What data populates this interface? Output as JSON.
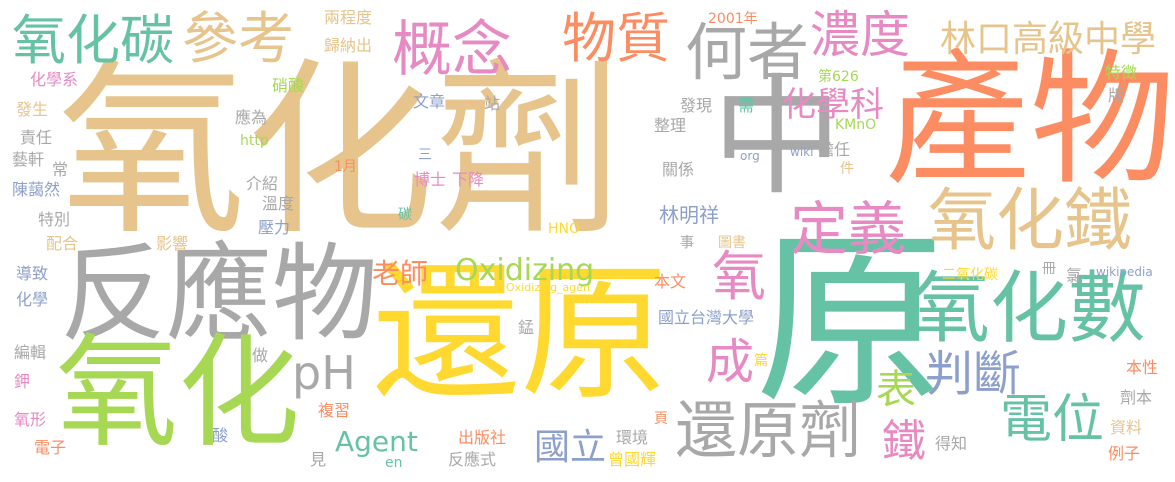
{
  "colors": {
    "tan": "#e6c48c",
    "gray": "#a8a8a8",
    "green": "#66c2a5",
    "lime": "#a6d854",
    "yellow": "#ffd92f",
    "orange": "#fc8d62",
    "blue": "#8da0cb",
    "pink": "#e78ac3"
  },
  "words": {
    "oxidant": "氧化劑",
    "reduction": "還原",
    "yuan": "原",
    "product": "產物",
    "reactant": "反應物",
    "oxidation": "氧化",
    "zhong": "中",
    "oxidation_number": "氧化數",
    "iron_oxide": "氧化鐵",
    "reductant": "還原劑",
    "carbon_oxide": "氧化碳",
    "reference": "參考",
    "concept": "概念",
    "matter": "物質",
    "which": "何者",
    "concentration": "濃度",
    "linkou": "林口高級中學",
    "definition": "定義",
    "chem_dept": "化學科",
    "judge": "判斷",
    "potential": "電位",
    "oxidizing": "Oxidizing",
    "agent": "Agent",
    "ph": "pH",
    "teacher": "老師",
    "oxygen": "氧",
    "become": "成",
    "table": "表",
    "iron": "鐵",
    "national": "國立",
    "lin": "林明祥",
    "nitric": "硝酸",
    "two_degrees": "兩程度",
    "summarize": "歸納出",
    "year": "2001年",
    "no626": "第626",
    "feature": "特徵",
    "chem_sys": "化學系",
    "occur": "發生",
    "responsible": "責任",
    "yixuan": "藝軒",
    "chang": "常",
    "chen": "陳藹然",
    "special": "特別",
    "match": "配合",
    "cause": "導致",
    "chemistry": "化學",
    "edit": "編輯",
    "potassium": "鉀",
    "oxy_form": "氧形",
    "electron": "電子",
    "should_be": "應為",
    "http": "http",
    "introduce": "介紹",
    "temperature": "溫度",
    "influence": "影響",
    "pressure": "壓力",
    "do": "做",
    "review": "複習",
    "acid": "酸",
    "see": "見",
    "en": "en",
    "publisher": "出版社",
    "reaction_eq": "反應式",
    "one_month": "1月",
    "three": "三",
    "doctor": "博士",
    "decrease": "下降",
    "carbon": "碳",
    "hno": "HNO",
    "article": "文章",
    "station": "站",
    "discover": "發現",
    "need": "需",
    "organize": "整理",
    "kmno": "KMnO",
    "relation": "關係",
    "org": "org",
    "wiki": "wiki",
    "serve": "擔任",
    "piece": "件",
    "version": "版",
    "thing": "事",
    "library": "圖書",
    "volume": "冊",
    "chlorine": "氯",
    "co2": "二氧化碳",
    "wikipedia": "wikipedia",
    "this_article": "本文",
    "oxidizing_agen": "Oxidizing_agen",
    "ntu": "國立台灣大學",
    "manganese": "錳",
    "chapter": "篇",
    "nature": "本性",
    "agent_ben": "劑本",
    "page": "頁",
    "environment": "環境",
    "zeng": "曾國輝",
    "learn": "得知",
    "data": "資料",
    "example": "例子"
  }
}
